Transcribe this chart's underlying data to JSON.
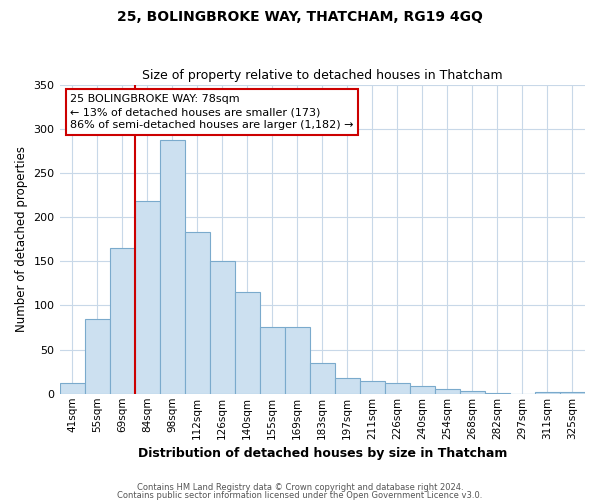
{
  "title": "25, BOLINGBROKE WAY, THATCHAM, RG19 4GQ",
  "subtitle": "Size of property relative to detached houses in Thatcham",
  "xlabel": "Distribution of detached houses by size in Thatcham",
  "ylabel": "Number of detached properties",
  "categories": [
    "41sqm",
    "55sqm",
    "69sqm",
    "84sqm",
    "98sqm",
    "112sqm",
    "126sqm",
    "140sqm",
    "155sqm",
    "169sqm",
    "183sqm",
    "197sqm",
    "211sqm",
    "226sqm",
    "240sqm",
    "254sqm",
    "268sqm",
    "282sqm",
    "297sqm",
    "311sqm",
    "325sqm"
  ],
  "values": [
    12,
    85,
    165,
    218,
    287,
    183,
    150,
    115,
    76,
    76,
    35,
    18,
    14,
    12,
    9,
    5,
    3,
    1,
    0,
    2,
    2
  ],
  "bar_color": "#cce0f0",
  "bar_edge_color": "#7aaacc",
  "vline_color": "#cc0000",
  "vline_x": 2.5,
  "annotation_text": "25 BOLINGBROKE WAY: 78sqm\n← 13% of detached houses are smaller (173)\n86% of semi-detached houses are larger (1,182) →",
  "annotation_box_edge": "#cc0000",
  "ylim": [
    0,
    350
  ],
  "yticks": [
    0,
    50,
    100,
    150,
    200,
    250,
    300,
    350
  ],
  "footer1": "Contains HM Land Registry data © Crown copyright and database right 2024.",
  "footer2": "Contains public sector information licensed under the Open Government Licence v3.0.",
  "bg_color": "#ffffff",
  "grid_color": "#c8d8e8"
}
